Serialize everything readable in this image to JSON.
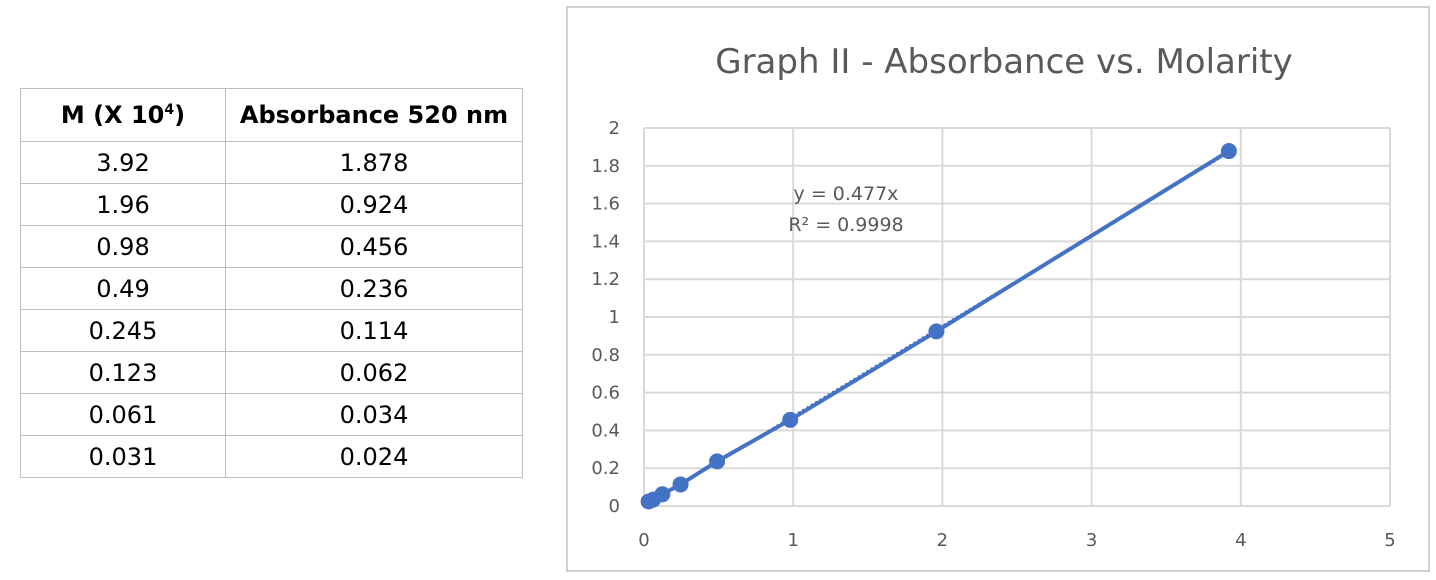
{
  "table": {
    "headers": {
      "col1_prefix": "M (X 10",
      "col1_exp": "4",
      "col1_suffix": ")",
      "col2": "Absorbance 520 nm"
    },
    "rows": [
      [
        "3.92",
        "1.878"
      ],
      [
        "1.96",
        "0.924"
      ],
      [
        "0.98",
        "0.456"
      ],
      [
        "0.49",
        "0.236"
      ],
      [
        "0.245",
        "0.114"
      ],
      [
        "0.123",
        "0.062"
      ],
      [
        "0.061",
        "0.034"
      ],
      [
        "0.031",
        "0.024"
      ]
    ]
  },
  "chart_data": {
    "type": "scatter",
    "title": "Graph II - Absorbance vs. Molarity",
    "xlabel": "",
    "ylabel": "",
    "xlim": [
      0,
      5
    ],
    "ylim": [
      0,
      2
    ],
    "x_ticks": [
      "0",
      "1",
      "2",
      "3",
      "4",
      "5"
    ],
    "y_ticks": [
      "0",
      "0.2",
      "0.4",
      "0.6",
      "0.8",
      "1",
      "1.2",
      "1.4",
      "1.6",
      "1.8",
      "2"
    ],
    "grid": true,
    "series": [
      {
        "x": [
          3.92,
          1.96,
          0.98,
          0.49,
          0.245,
          0.123,
          0.061,
          0.031
        ],
        "y": [
          1.878,
          0.924,
          0.456,
          0.236,
          0.114,
          0.062,
          0.034,
          0.024
        ],
        "color": "#4472c4",
        "connected": true
      }
    ],
    "trendline": {
      "slope": 0.477,
      "style": "dotted",
      "color": "#4472c4"
    },
    "annotations": {
      "equation": "y = 0.477x",
      "r_squared": "R² = 0.9998"
    }
  }
}
